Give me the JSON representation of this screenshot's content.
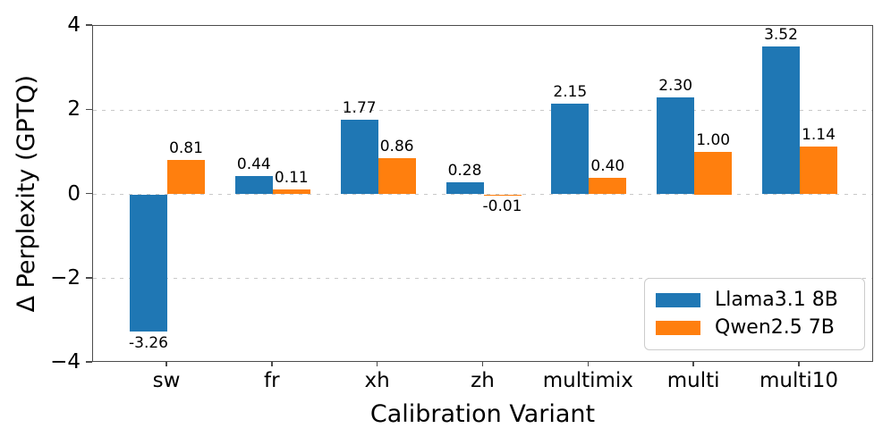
{
  "figure": {
    "background_color": "#ffffff",
    "spine_color": "#4c4c4c",
    "grid_color": "#c9c9c9"
  },
  "chart_data": {
    "type": "bar",
    "title": "",
    "xlabel": "Calibration Variant",
    "ylabel": "Δ Perplexity (GPTQ)",
    "categories": [
      "sw",
      "fr",
      "xh",
      "zh",
      "multimix",
      "multi",
      "multi10"
    ],
    "series": [
      {
        "name": "Llama3.1 8B",
        "color": "#1f77b4",
        "values": [
          -3.26,
          0.44,
          1.77,
          0.28,
          2.15,
          2.3,
          3.52
        ],
        "labels": [
          "-3.26",
          "0.44",
          "1.77",
          "0.28",
          "2.15",
          "2.30",
          "3.52"
        ]
      },
      {
        "name": "Qwen2.5 7B",
        "color": "#ff7f0e",
        "values": [
          0.81,
          0.11,
          0.86,
          -0.01,
          0.4,
          1.0,
          1.14
        ],
        "labels": [
          "0.81",
          "0.11",
          "0.86",
          "-0.01",
          "0.40",
          "1.00",
          "1.14"
        ]
      }
    ],
    "ylim": [
      -4,
      4
    ],
    "yticks": [
      4,
      2,
      0,
      -2,
      -4
    ],
    "ytick_labels": [
      "4",
      "2",
      "0",
      "−2",
      "−4"
    ],
    "gridline_values": [
      2,
      0,
      -2
    ],
    "grid_style": "dashed horizontal",
    "legend_position": "lower right"
  }
}
